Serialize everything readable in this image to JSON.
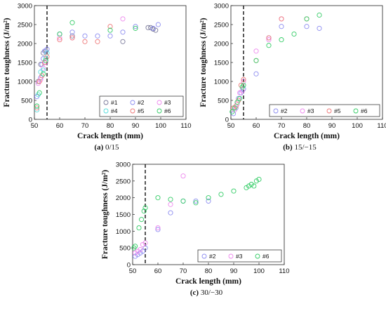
{
  "chart_data": [
    {
      "type": "scatter",
      "caption_label": "(a)",
      "caption_text": "0/15",
      "xlabel": "Crack length (mm)",
      "ylabel": "Fracture toughness (J/m²)",
      "xlim": [
        50,
        110
      ],
      "ylim": [
        0,
        3000
      ],
      "xticks": [
        50,
        60,
        70,
        80,
        90,
        100,
        110
      ],
      "yticks": [
        0,
        500,
        1000,
        1500,
        2000,
        2500,
        3000
      ],
      "vline_x": 55,
      "legend_position": "bottom-right",
      "legend_columns": 3,
      "series": [
        {
          "name": "#1",
          "color": "#7a7a9a",
          "points": [
            [
              51.5,
              1000
            ],
            [
              52.5,
              1450
            ],
            [
              53.5,
              1750
            ],
            [
              54.5,
              1800
            ],
            [
              60,
              2250
            ],
            [
              65,
              2200
            ],
            [
              85,
              2050
            ],
            [
              95,
              2420
            ],
            [
              96,
              2420
            ],
            [
              97,
              2380
            ],
            [
              98,
              2350
            ]
          ]
        },
        {
          "name": "#2",
          "color": "#8c8cf0",
          "points": [
            [
              51,
              600
            ],
            [
              52.5,
              1100
            ],
            [
              53,
              1450
            ],
            [
              53.5,
              1600
            ],
            [
              54,
              1800
            ],
            [
              55,
              1850
            ],
            [
              60,
              2250
            ],
            [
              65,
              2300
            ],
            [
              70,
              2200
            ],
            [
              75,
              2200
            ],
            [
              80,
              2200
            ],
            [
              85,
              2300
            ],
            [
              90,
              2450
            ],
            [
              97,
              2400
            ],
            [
              99,
              2500
            ]
          ]
        },
        {
          "name": "#3",
          "color": "#ee88ee",
          "points": [
            [
              51.5,
              950
            ],
            [
              52.5,
              1050
            ],
            [
              53.5,
              1350
            ],
            [
              54.5,
              1500
            ],
            [
              60,
              2150
            ],
            [
              65,
              2150
            ],
            [
              85,
              2650
            ]
          ]
        },
        {
          "name": "#4",
          "color": "#55dddd",
          "points": [
            [
              51,
              250
            ],
            [
              51.5,
              650
            ],
            [
              52.5,
              1250
            ],
            [
              53.5,
              1300
            ],
            [
              54.5,
              1600
            ],
            [
              55,
              1750
            ]
          ]
        },
        {
          "name": "#5",
          "color": "#ee7777",
          "points": [
            [
              51,
              300
            ],
            [
              52,
              1000
            ],
            [
              53,
              1150
            ],
            [
              54,
              1500
            ],
            [
              55,
              1650
            ],
            [
              60,
              2100
            ],
            [
              65,
              2150
            ],
            [
              70,
              2050
            ],
            [
              75,
              2050
            ],
            [
              80,
              2450
            ]
          ]
        },
        {
          "name": "#6",
          "color": "#33cc66",
          "points": [
            [
              51,
              350
            ],
            [
              52,
              700
            ],
            [
              53.5,
              1200
            ],
            [
              54.5,
              1550
            ],
            [
              60,
              2250
            ],
            [
              65,
              2550
            ],
            [
              80,
              2350
            ],
            [
              90,
              2400
            ]
          ]
        }
      ]
    },
    {
      "type": "scatter",
      "caption_label": "(b)",
      "caption_text": "15/−15",
      "xlabel": "Crack length (mm)",
      "ylabel": "Fracture toughness (J/m²)",
      "xlim": [
        50,
        110
      ],
      "ylim": [
        0,
        3000
      ],
      "xticks": [
        50,
        60,
        70,
        80,
        90,
        100,
        110
      ],
      "yticks": [
        0,
        500,
        1000,
        1500,
        2000,
        2500,
        3000
      ],
      "vline_x": 55,
      "legend_position": "bottom-right",
      "legend_columns": 4,
      "series": [
        {
          "name": "#2",
          "color": "#8c8cf0",
          "points": [
            [
              51,
              150
            ],
            [
              52,
              300
            ],
            [
              53,
              550
            ],
            [
              54,
              700
            ],
            [
              55,
              800
            ],
            [
              60,
              1200
            ],
            [
              65,
              2150
            ],
            [
              70,
              2450
            ],
            [
              80,
              2450
            ],
            [
              85,
              2400
            ]
          ]
        },
        {
          "name": "#3",
          "color": "#ee88ee",
          "points": [
            [
              51.5,
              250
            ],
            [
              52.5,
              400
            ],
            [
              53.5,
              700
            ],
            [
              54.5,
              750
            ],
            [
              55,
              1000
            ],
            [
              60,
              1800
            ],
            [
              65,
              2100
            ],
            [
              70,
              2650
            ]
          ]
        },
        {
          "name": "#5",
          "color": "#ee7777",
          "points": [
            [
              51,
              300
            ],
            [
              52,
              350
            ],
            [
              53,
              500
            ],
            [
              54,
              900
            ],
            [
              55,
              1050
            ],
            [
              60,
              1550
            ],
            [
              65,
              2150
            ],
            [
              70,
              2650
            ],
            [
              80,
              2650
            ]
          ]
        },
        {
          "name": "#6",
          "color": "#33cc66",
          "points": [
            [
              50.5,
              200
            ],
            [
              51.5,
              300
            ],
            [
              52.5,
              450
            ],
            [
              53.5,
              550
            ],
            [
              54.5,
              850
            ],
            [
              55,
              900
            ],
            [
              60,
              1550
            ],
            [
              65,
              1950
            ],
            [
              70,
              2100
            ],
            [
              75,
              2250
            ],
            [
              80,
              2650
            ],
            [
              85,
              2750
            ]
          ]
        }
      ]
    },
    {
      "type": "scatter",
      "caption_label": "(c)",
      "caption_text": "30/−30",
      "xlabel": "Crack length (mm)",
      "ylabel": "Fracture toughness (J/m²)",
      "xlim": [
        50,
        110
      ],
      "ylim": [
        0,
        3000
      ],
      "xticks": [
        50,
        60,
        70,
        80,
        90,
        100,
        110
      ],
      "yticks": [
        0,
        500,
        1000,
        1500,
        2000,
        2500,
        3000
      ],
      "vline_x": 55,
      "legend_position": "bottom-right",
      "legend_columns": 3,
      "series": [
        {
          "name": "#2",
          "color": "#8c8cf0",
          "points": [
            [
              51,
              250
            ],
            [
              52,
              300
            ],
            [
              53,
              350
            ],
            [
              54,
              400
            ],
            [
              55,
              500
            ],
            [
              60,
              1050
            ],
            [
              65,
              1550
            ],
            [
              70,
              1900
            ],
            [
              75,
              1900
            ],
            [
              80,
              1900
            ]
          ]
        },
        {
          "name": "#3",
          "color": "#ee88ee",
          "points": [
            [
              51,
              350
            ],
            [
              52,
              400
            ],
            [
              53,
              450
            ],
            [
              54,
              600
            ],
            [
              55,
              650
            ],
            [
              60,
              1100
            ],
            [
              65,
              1800
            ],
            [
              70,
              2650
            ]
          ]
        },
        {
          "name": "#6",
          "color": "#33cc66",
          "points": [
            [
              50.5,
              500
            ],
            [
              51,
              550
            ],
            [
              52.5,
              1100
            ],
            [
              53.5,
              1350
            ],
            [
              54.5,
              1600
            ],
            [
              55,
              1700
            ],
            [
              60,
              2000
            ],
            [
              65,
              1950
            ],
            [
              70,
              1900
            ],
            [
              75,
              1850
            ],
            [
              80,
              2000
            ],
            [
              85,
              2100
            ],
            [
              90,
              2200
            ],
            [
              95,
              2300
            ],
            [
              96,
              2350
            ],
            [
              97,
              2400
            ],
            [
              98,
              2350
            ],
            [
              99,
              2500
            ],
            [
              100,
              2550
            ]
          ]
        }
      ]
    }
  ]
}
